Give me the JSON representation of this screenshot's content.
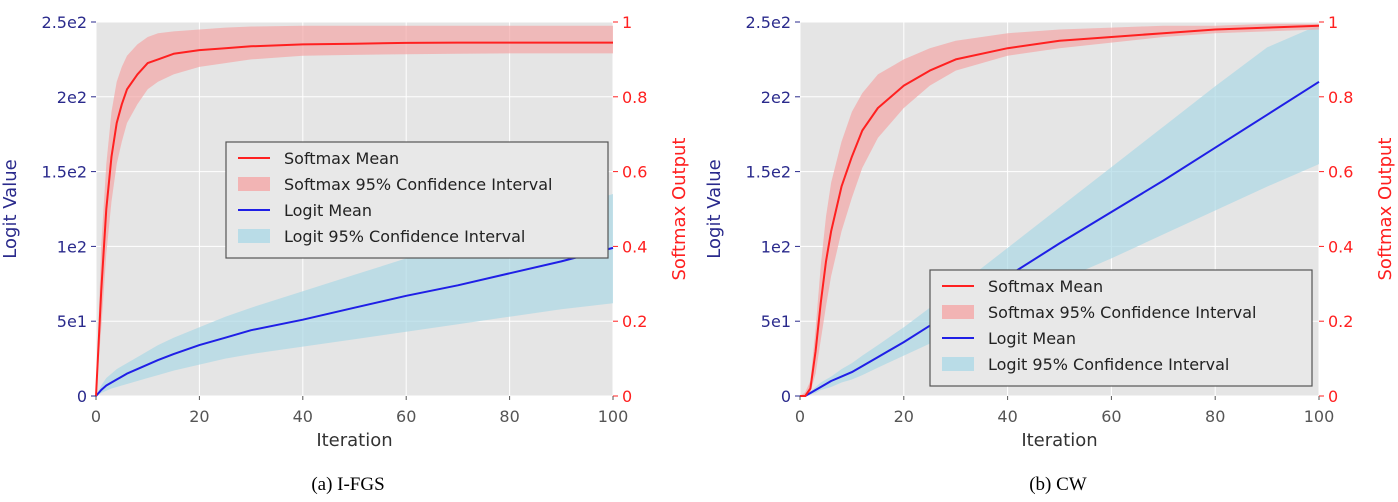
{
  "figure": {
    "panels": [
      {
        "caption": "(a) I-FGS"
      },
      {
        "caption": "(b) CW"
      }
    ]
  },
  "colors": {
    "softmax": "#ff2020",
    "softmax_band": "#f4a6a6",
    "logit": "#1f1fe6",
    "logit_band": "#add8e6",
    "left_axis": "#2a2a8c",
    "right_axis": "#ff2020",
    "background": "#e5e5e5",
    "grid": "#ffffff",
    "tick_text": "#555555"
  },
  "chart_data": [
    {
      "type": "line",
      "caption": "(a) I-FGS",
      "xlabel": "Iteration",
      "ylabel_left": "Logit Value",
      "ylabel_right": "Softmax Output",
      "xlim": [
        0,
        100
      ],
      "ylim_left": [
        0,
        250
      ],
      "ylim_right": [
        0,
        1
      ],
      "xticks": [
        0,
        20,
        40,
        60,
        80,
        100
      ],
      "xtick_labels": [
        "0",
        "20",
        "40",
        "60",
        "80",
        "100"
      ],
      "yticks_left": [
        0,
        50,
        100,
        150,
        200,
        250
      ],
      "ytick_labels_left": [
        "0",
        "5e1",
        "1e2",
        "1.5e2",
        "2e2",
        "2.5e2"
      ],
      "yticks_right": [
        0,
        0.2,
        0.4,
        0.6,
        0.8,
        1
      ],
      "ytick_labels_right": [
        "0",
        "0.2",
        "0.4",
        "0.6",
        "0.8",
        "1"
      ],
      "grid": true,
      "legend_position": "center-right",
      "legend": [
        "Softmax Mean",
        "Softmax 95% Confidence Interval",
        "Logit Mean",
        "Logit 95% Confidence Interval"
      ],
      "x": [
        0,
        1,
        2,
        3,
        4,
        5,
        6,
        8,
        10,
        12,
        15,
        20,
        25,
        30,
        40,
        50,
        60,
        70,
        80,
        90,
        100
      ],
      "series": [
        {
          "name": "Softmax Mean",
          "axis": "right",
          "values": [
            0.0,
            0.28,
            0.5,
            0.64,
            0.73,
            0.78,
            0.82,
            0.86,
            0.89,
            0.9,
            0.915,
            0.925,
            0.93,
            0.935,
            0.94,
            0.942,
            0.944,
            0.945,
            0.945,
            0.945,
            0.945
          ],
          "lower": [
            0.0,
            0.18,
            0.38,
            0.52,
            0.62,
            0.68,
            0.73,
            0.78,
            0.82,
            0.84,
            0.86,
            0.88,
            0.89,
            0.9,
            0.91,
            0.912,
            0.914,
            0.915,
            0.916,
            0.916,
            0.916
          ],
          "upper": [
            0.0,
            0.4,
            0.62,
            0.76,
            0.84,
            0.88,
            0.91,
            0.94,
            0.96,
            0.97,
            0.975,
            0.98,
            0.985,
            0.988,
            0.99,
            0.99,
            0.99,
            0.99,
            0.99,
            0.99,
            0.99
          ]
        },
        {
          "name": "Logit Mean",
          "axis": "left",
          "values": [
            0,
            4,
            7,
            9,
            11,
            13,
            15,
            18,
            21,
            24,
            28,
            34,
            39,
            44,
            51,
            59,
            67,
            74,
            82,
            90,
            99
          ],
          "lower": [
            0,
            2,
            3.5,
            5,
            6,
            7,
            8,
            10,
            12,
            14,
            17,
            21,
            25,
            28,
            33,
            38,
            43,
            48,
            53,
            58,
            62
          ],
          "upper": [
            0,
            7,
            12,
            15,
            18,
            20,
            22,
            26,
            30,
            34,
            39,
            46,
            53,
            59,
            70,
            81,
            92,
            103,
            114,
            125,
            135
          ]
        }
      ]
    },
    {
      "type": "line",
      "caption": "(b) CW",
      "xlabel": "Iteration",
      "ylabel_left": "Logit Value",
      "ylabel_right": "Softmax Output",
      "xlim": [
        0,
        100
      ],
      "ylim_left": [
        0,
        250
      ],
      "ylim_right": [
        0,
        1
      ],
      "xticks": [
        0,
        20,
        40,
        60,
        80,
        100
      ],
      "xtick_labels": [
        "0",
        "20",
        "40",
        "60",
        "80",
        "100"
      ],
      "yticks_left": [
        0,
        50,
        100,
        150,
        200,
        250
      ],
      "ytick_labels_left": [
        "0",
        "5e1",
        "1e2",
        "1.5e2",
        "2e2",
        "2.5e2"
      ],
      "yticks_right": [
        0,
        0.2,
        0.4,
        0.6,
        0.8,
        1
      ],
      "ytick_labels_right": [
        "0",
        "0.2",
        "0.4",
        "0.6",
        "0.8",
        "1"
      ],
      "grid": true,
      "legend_position": "lower-right",
      "legend": [
        "Softmax Mean",
        "Softmax 95% Confidence Interval",
        "Logit Mean",
        "Logit 95% Confidence Interval"
      ],
      "x": [
        0,
        1,
        2,
        3,
        4,
        5,
        6,
        8,
        10,
        12,
        15,
        20,
        25,
        30,
        40,
        50,
        60,
        70,
        80,
        90,
        100
      ],
      "series": [
        {
          "name": "Softmax Mean",
          "axis": "right",
          "values": [
            0.0,
            0.0,
            0.02,
            0.12,
            0.25,
            0.36,
            0.44,
            0.56,
            0.64,
            0.71,
            0.77,
            0.83,
            0.87,
            0.9,
            0.93,
            0.95,
            0.96,
            0.97,
            0.98,
            0.985,
            0.99
          ],
          "lower": [
            0.0,
            0.0,
            0.01,
            0.06,
            0.15,
            0.24,
            0.32,
            0.44,
            0.53,
            0.61,
            0.69,
            0.77,
            0.83,
            0.87,
            0.91,
            0.93,
            0.945,
            0.96,
            0.97,
            0.975,
            0.98
          ],
          "upper": [
            0.0,
            0.01,
            0.04,
            0.18,
            0.35,
            0.48,
            0.57,
            0.68,
            0.76,
            0.81,
            0.86,
            0.9,
            0.93,
            0.95,
            0.97,
            0.98,
            0.985,
            0.99,
            0.99,
            0.995,
            0.995
          ]
        },
        {
          "name": "Logit Mean",
          "axis": "left",
          "values": [
            0,
            0,
            2,
            4,
            6,
            8,
            10,
            13,
            16,
            20,
            26,
            36,
            47,
            58,
            80,
            102,
            123,
            144,
            166,
            188,
            210
          ],
          "lower": [
            0,
            0,
            1,
            2,
            4,
            5,
            6,
            9,
            11,
            14,
            19,
            27,
            35,
            43,
            60,
            77,
            92,
            108,
            124,
            140,
            155
          ],
          "upper": [
            0,
            1,
            3,
            6,
            9,
            11,
            13,
            18,
            22,
            27,
            34,
            46,
            59,
            72,
            99,
            126,
            153,
            180,
            207,
            233,
            248
          ]
        }
      ]
    }
  ]
}
